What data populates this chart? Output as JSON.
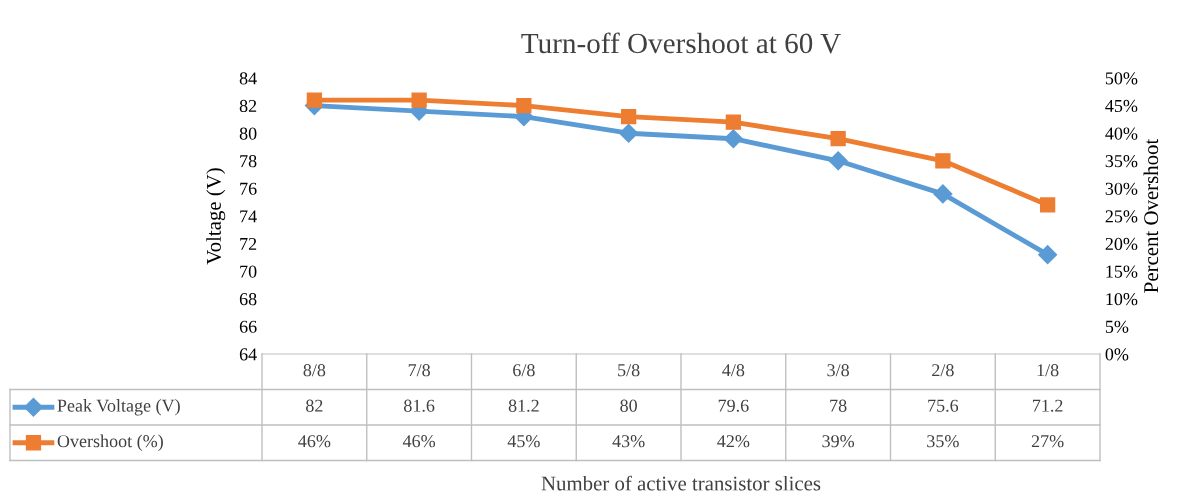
{
  "chart_data": {
    "type": "line",
    "title": "Turn-off Overshoot at 60 V",
    "xlabel": "Number of active transistor slices",
    "ylabel": "Voltage (V)",
    "y2label": "Percent Overshoot",
    "categories": [
      "8/8",
      "7/8",
      "6/8",
      "5/8",
      "4/8",
      "3/8",
      "2/8",
      "1/8"
    ],
    "series": [
      {
        "name": "Peak Voltage (V)",
        "color": "#5b9bd5",
        "marker": "diamond",
        "values": [
          82,
          81.6,
          81.2,
          80,
          79.6,
          78,
          75.6,
          71.2
        ],
        "value_labels": [
          "82",
          "81.6",
          "81.2",
          "80",
          "79.6",
          "78",
          "75.6",
          "71.2"
        ]
      },
      {
        "name": "Overshoot (%)",
        "color": "#ed7d31",
        "marker": "square",
        "axis": "y2",
        "values": [
          46,
          46,
          45,
          43,
          42,
          39,
          35,
          27
        ],
        "value_labels": [
          "46%",
          "46%",
          "45%",
          "43%",
          "42%",
          "39%",
          "35%",
          "27%"
        ]
      }
    ],
    "ylim": [
      64,
      84
    ],
    "yticks": [
      64,
      66,
      68,
      70,
      72,
      74,
      76,
      78,
      80,
      82,
      84
    ],
    "y2lim": [
      0,
      50
    ],
    "y2ticks": [
      {
        "value": 0,
        "label": "0%"
      },
      {
        "value": 5,
        "label": "5%"
      },
      {
        "value": 10,
        "label": "10%"
      },
      {
        "value": 15,
        "label": "15%"
      },
      {
        "value": 20,
        "label": "20%"
      },
      {
        "value": 25,
        "label": "25%"
      },
      {
        "value": 30,
        "label": "30%"
      },
      {
        "value": 35,
        "label": "35%"
      },
      {
        "value": 40,
        "label": "40%"
      },
      {
        "value": 45,
        "label": "45%"
      },
      {
        "value": 50,
        "label": "50%"
      }
    ],
    "grid": false,
    "legend": "bottom"
  }
}
